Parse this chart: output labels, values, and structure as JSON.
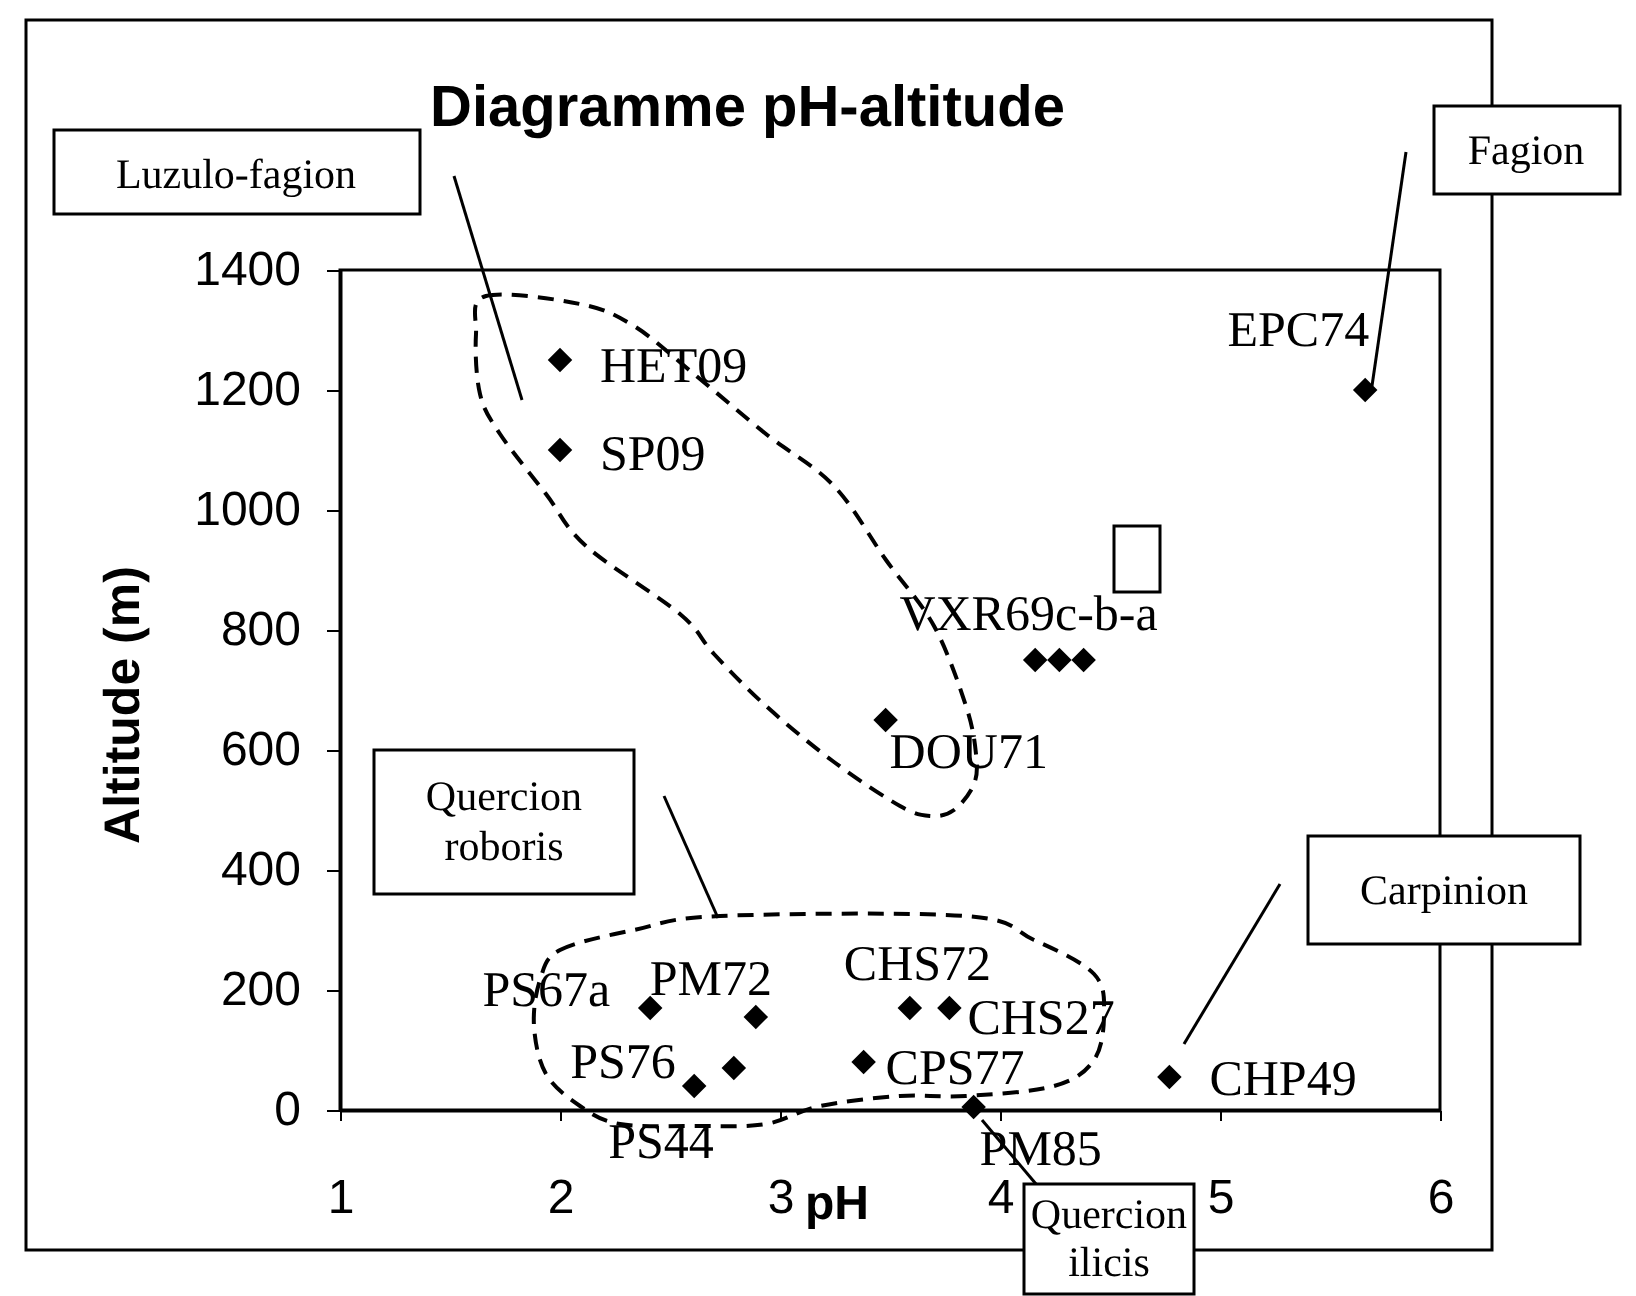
{
  "chart_data": {
    "type": "scatter",
    "title": "Diagramme pH-altitude",
    "xlabel": "pH",
    "ylabel": "Altitude (m)",
    "x": [
      2.0,
      2.0,
      3.48,
      4.16,
      4.27,
      4.38,
      5.66,
      2.41,
      2.89,
      2.79,
      2.61,
      3.59,
      3.77,
      3.38,
      3.88,
      4.77
    ],
    "values": [
      1250,
      1100,
      650,
      750,
      750,
      750,
      1200,
      170,
      155,
      70,
      40,
      170,
      170,
      80,
      5,
      55
    ],
    "color": "#000000",
    "marker": "diamond",
    "xlim": [
      1,
      6
    ],
    "xticks": [
      1,
      2,
      3,
      4,
      5,
      6
    ],
    "ylim": [
      0,
      1400
    ],
    "yticks": [
      0,
      200,
      400,
      600,
      800,
      1000,
      1200,
      1400
    ],
    "annotations": [
      "Luzulo-fagion",
      "Fagion",
      "Quercion roboris",
      "Carpinion",
      "Quercion ilicis",
      {
        "text": "HET09",
        "x": 2.0,
        "y": 1250
      },
      {
        "text": "SP09",
        "x": 2.0,
        "y": 1100
      },
      {
        "text": "DOU71",
        "x": 3.48,
        "y": 650
      },
      {
        "text": "VXR69c-b-a",
        "x": 4.27,
        "y": 750
      },
      {
        "text": "EPC74",
        "x": 5.66,
        "y": 1200
      },
      {
        "text": "PS67a",
        "x": 2.41,
        "y": 170
      },
      {
        "text": "PM72",
        "x": 2.89,
        "y": 155
      },
      {
        "text": "PS76",
        "x": 2.79,
        "y": 70
      },
      {
        "text": "PS44",
        "x": 2.61,
        "y": 40
      },
      {
        "text": "CHS72",
        "x": 3.59,
        "y": 170
      },
      {
        "text": "CHS27",
        "x": 3.77,
        "y": 170
      },
      {
        "text": "CPS77",
        "x": 3.38,
        "y": 80
      },
      {
        "text": "PM85",
        "x": 3.88,
        "y": 5
      },
      {
        "text": "CHP49",
        "x": 4.77,
        "y": 55
      }
    ]
  }
}
